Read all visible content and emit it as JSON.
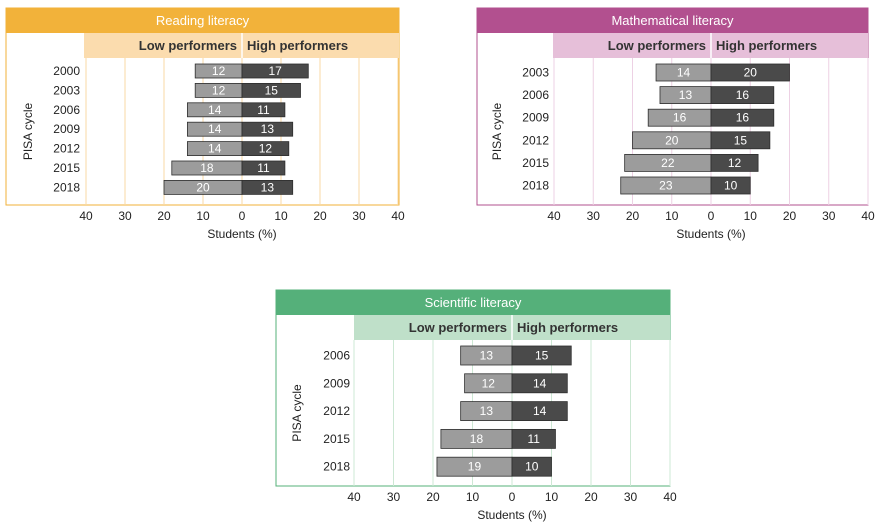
{
  "axis": {
    "ticks": [
      "40",
      "30",
      "20",
      "10",
      "0",
      "10",
      "20",
      "30",
      "40"
    ]
  },
  "chart_data": [
    {
      "type": "bar",
      "title": "Reading literacy",
      "header_low": "Low performers",
      "header_high": "High performers",
      "ylabel": "PISA cycle",
      "xlabel": "Students (%)",
      "xlim": [
        -40,
        40
      ],
      "categories": [
        "2000",
        "2003",
        "2006",
        "2009",
        "2012",
        "2015",
        "2018"
      ],
      "series": [
        {
          "name": "Low performers",
          "values": [
            12,
            12,
            14,
            14,
            14,
            18,
            20
          ]
        },
        {
          "name": "High performers",
          "values": [
            17,
            15,
            11,
            13,
            12,
            11,
            13
          ]
        }
      ],
      "colors": {
        "title_bg": "#f2b23a",
        "header_bg": "#fbdcae",
        "grid": "#f8d9a6",
        "border": "#f2b23a"
      }
    },
    {
      "type": "bar",
      "title": "Mathematical literacy",
      "header_low": "Low performers",
      "header_high": "High performers",
      "ylabel": "PISA cycle",
      "xlabel": "Students (%)",
      "xlim": [
        -40,
        40
      ],
      "categories": [
        "2003",
        "2006",
        "2009",
        "2012",
        "2015",
        "2018"
      ],
      "series": [
        {
          "name": "Low performers",
          "values": [
            14,
            13,
            16,
            20,
            22,
            23
          ]
        },
        {
          "name": "High performers",
          "values": [
            20,
            16,
            16,
            15,
            12,
            10
          ]
        }
      ],
      "colors": {
        "title_bg": "#b2508f",
        "header_bg": "#e6bfd9",
        "grid": "#edd1e4",
        "border": "#b2508f"
      }
    },
    {
      "type": "bar",
      "title": "Scientific literacy",
      "header_low": "Low performers",
      "header_high": "High performers",
      "ylabel": "PISA cycle",
      "xlabel": "Students (%)",
      "xlim": [
        -40,
        40
      ],
      "categories": [
        "2006",
        "2009",
        "2012",
        "2015",
        "2018"
      ],
      "series": [
        {
          "name": "Low performers",
          "values": [
            13,
            12,
            13,
            18,
            19
          ]
        },
        {
          "name": "High performers",
          "values": [
            15,
            14,
            14,
            11,
            10
          ]
        }
      ],
      "colors": {
        "title_bg": "#55b07a",
        "header_bg": "#bfe0c9",
        "grid": "#cde8d4",
        "border": "#55b07a"
      }
    }
  ],
  "style": {
    "low_bar": "#9c9c9c",
    "high_bar": "#4a4a4a",
    "bar_stroke": "#2e2e2e"
  }
}
